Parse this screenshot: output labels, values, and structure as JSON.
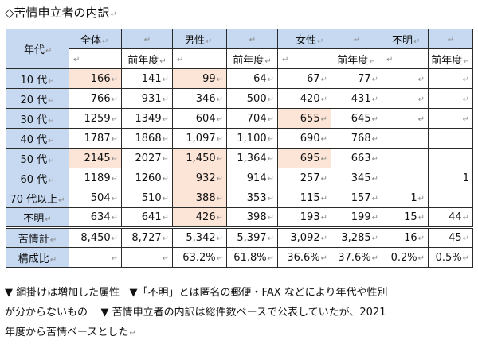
{
  "title": "◇苦情申立者の内訳",
  "headers": {
    "age": "年代",
    "total": "全体",
    "male": "男性",
    "female": "女性",
    "unknown": "不明",
    "prev": "前年度"
  },
  "para_mark": "↵",
  "rows": [
    {
      "label": "10 代",
      "cells": [
        "166",
        "141",
        "99",
        "64",
        "67",
        "77",
        "",
        ""
      ]
    },
    {
      "label": "20 代",
      "cells": [
        "766",
        "931",
        "346",
        "500",
        "420",
        "431",
        "",
        ""
      ]
    },
    {
      "label": "30 代",
      "cells": [
        "1259",
        "1349",
        "604",
        "704",
        "655",
        "645",
        "",
        ""
      ]
    },
    {
      "label": "40 代",
      "cells": [
        "1787",
        "1868",
        "1,097",
        "1,100",
        "690",
        "768",
        "",
        ""
      ]
    },
    {
      "label": "50 代",
      "cells": [
        "2145",
        "2027",
        "1,450",
        "1,364",
        "695",
        "663",
        "",
        ""
      ]
    },
    {
      "label": "60 代",
      "cells": [
        "1189",
        "1260",
        "932",
        "914",
        "257",
        "345",
        "",
        "1"
      ]
    },
    {
      "label": "70 代以上",
      "cells": [
        "504",
        "510",
        "388",
        "353",
        "115",
        "157",
        "1",
        ""
      ]
    },
    {
      "label": "不明",
      "cells": [
        "634",
        "641",
        "426",
        "398",
        "193",
        "199",
        "15",
        "44"
      ]
    }
  ],
  "totals": {
    "label": "苦情計",
    "cells": [
      "8,450",
      "8,727",
      "5,342",
      "5,397",
      "3,092",
      "3,285",
      "16",
      "45"
    ]
  },
  "ratio": {
    "label": "構成比",
    "cells": [
      "",
      "",
      "63.2%",
      "61.8%",
      "36.6%",
      "37.6%",
      "0.2%",
      "0.5%"
    ]
  },
  "notes": {
    "line1a": "▼ 網掛けは増加した属性",
    "line1b": "▼「不明」とは匿名の郵便・FAX などにより年代や性別",
    "line2a": "が分からないもの",
    "line2b": "▼ 苦情申立者の内訳は総件数ベースで公表していたが、2021",
    "line3": "年度から苦情ベースとした"
  },
  "highlight_color": "#fce4d6",
  "header_color": "#c6d9f1"
}
